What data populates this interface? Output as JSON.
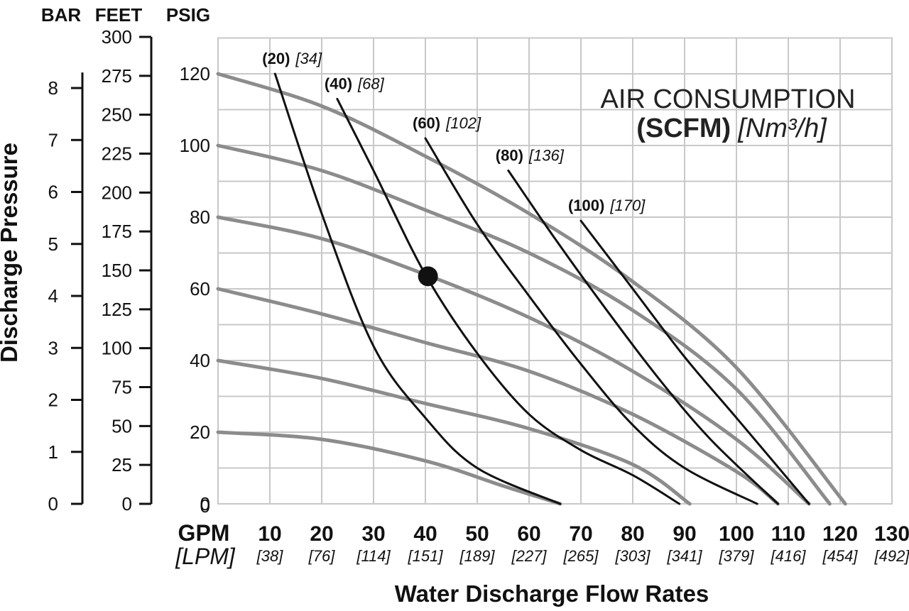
{
  "chart_data": {
    "type": "line",
    "title": "",
    "xlabel": "Water Discharge Flow Rates",
    "ylabel": "Discharge Pressure",
    "x_unit_primary": "GPM",
    "x_unit_secondary": "[LPM]",
    "x_ticks": [
      "10",
      "20",
      "30",
      "40",
      "50",
      "60",
      "70",
      "80",
      "90",
      "100",
      "110",
      "120",
      "130"
    ],
    "x_ticks_lpm": [
      "[38]",
      "[76]",
      "[114]",
      "[151]",
      "[189]",
      "[227]",
      "[265]",
      "[303]",
      "[341]",
      "[379]",
      "[416]",
      "[454]",
      "[492]"
    ],
    "xlim": [
      0,
      130
    ],
    "ylim": [
      0,
      130
    ],
    "y_axes": [
      {
        "header": "PSIG",
        "ticks": [
          "0",
          "20",
          "40",
          "60",
          "80",
          "100",
          "120"
        ],
        "values": [
          0,
          20,
          40,
          60,
          80,
          100,
          120
        ]
      },
      {
        "header": "FEET",
        "ticks": [
          "0",
          "25",
          "50",
          "75",
          "100",
          "125",
          "150",
          "175",
          "200",
          "225",
          "250",
          "275",
          "300"
        ],
        "values": [
          0,
          25,
          50,
          75,
          100,
          125,
          150,
          175,
          200,
          225,
          250,
          275,
          300
        ]
      },
      {
        "header": "BAR",
        "ticks": [
          "0",
          "1",
          "2",
          "3",
          "4",
          "5",
          "6",
          "7",
          "8"
        ],
        "values": [
          0,
          1,
          2,
          3,
          4,
          5,
          6,
          7,
          8
        ]
      }
    ],
    "grid": true,
    "legend_title_line1": "AIR CONSUMPTION",
    "legend_title_line2_bold": "(SCFM)",
    "legend_title_line2_italic": "[Nm³/h]",
    "pressure_curves": [
      {
        "points": [
          [
            0,
            120
          ],
          [
            20,
            111
          ],
          [
            40,
            97
          ],
          [
            60,
            81
          ],
          [
            80,
            62
          ],
          [
            100,
            38
          ],
          [
            121,
            0
          ]
        ]
      },
      {
        "points": [
          [
            0,
            100
          ],
          [
            20,
            93
          ],
          [
            40,
            82
          ],
          [
            60,
            70
          ],
          [
            80,
            54
          ],
          [
            100,
            32
          ],
          [
            118,
            0
          ]
        ]
      },
      {
        "points": [
          [
            0,
            80
          ],
          [
            20,
            74
          ],
          [
            40,
            64
          ],
          [
            60,
            52
          ],
          [
            80,
            37
          ],
          [
            100,
            18
          ],
          [
            114,
            0
          ]
        ]
      },
      {
        "points": [
          [
            0,
            60
          ],
          [
            20,
            53
          ],
          [
            40,
            45
          ],
          [
            60,
            37
          ],
          [
            80,
            25
          ],
          [
            100,
            9
          ],
          [
            108,
            0
          ]
        ]
      },
      {
        "points": [
          [
            0,
            40
          ],
          [
            20,
            35
          ],
          [
            40,
            28
          ],
          [
            60,
            21
          ],
          [
            80,
            11
          ],
          [
            91,
            0
          ]
        ]
      },
      {
        "points": [
          [
            0,
            20
          ],
          [
            20,
            18
          ],
          [
            40,
            12
          ],
          [
            55,
            5
          ],
          [
            66,
            0
          ]
        ]
      }
    ],
    "air_curves": [
      {
        "label_scfm": "(20)",
        "label_nm3h": "[34]",
        "points": [
          [
            11,
            120
          ],
          [
            20,
            81
          ],
          [
            30,
            44
          ],
          [
            40,
            24
          ],
          [
            50,
            10
          ],
          [
            66,
            0
          ]
        ]
      },
      {
        "label_scfm": "(40)",
        "label_nm3h": "[68]",
        "points": [
          [
            23,
            113
          ],
          [
            30,
            93
          ],
          [
            40,
            64
          ],
          [
            50,
            42
          ],
          [
            60,
            25
          ],
          [
            70,
            15
          ],
          [
            80,
            8
          ],
          [
            89,
            0
          ]
        ]
      },
      {
        "label_scfm": "(60)",
        "label_nm3h": "[102]",
        "points": [
          [
            40,
            102
          ],
          [
            50,
            78
          ],
          [
            60,
            58
          ],
          [
            70,
            39
          ],
          [
            80,
            22
          ],
          [
            90,
            10
          ],
          [
            104,
            0
          ]
        ]
      },
      {
        "label_scfm": "(80)",
        "label_nm3h": "[136]",
        "points": [
          [
            56,
            93
          ],
          [
            65,
            74
          ],
          [
            75,
            54
          ],
          [
            85,
            35
          ],
          [
            95,
            18
          ],
          [
            108,
            0
          ]
        ]
      },
      {
        "label_scfm": "(100)",
        "label_nm3h": "[170]",
        "points": [
          [
            70,
            79
          ],
          [
            80,
            60
          ],
          [
            90,
            41
          ],
          [
            100,
            24
          ],
          [
            114,
            0
          ]
        ]
      }
    ],
    "marker_point": [
      40.5,
      63.5
    ]
  }
}
